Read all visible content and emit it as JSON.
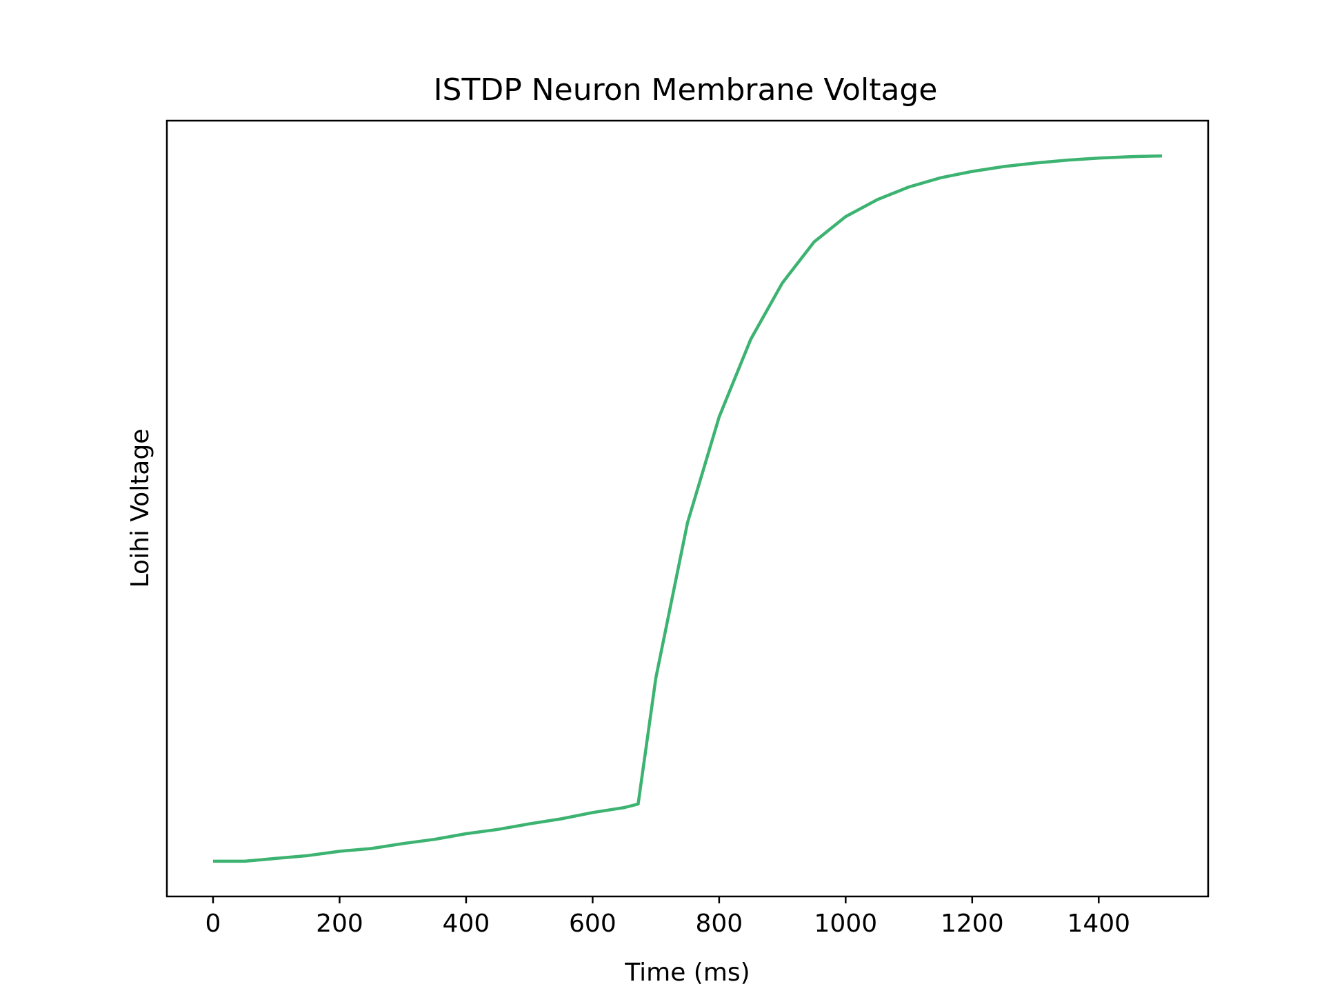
{
  "chart_data": {
    "type": "line",
    "title": "ISTDP Neuron Membrane Voltage",
    "xlabel": "Time (ms)",
    "ylabel": "Loihi Voltage",
    "xlim": [
      -73,
      1573
    ],
    "ylim": [
      -0.05,
      1.05
    ],
    "x_ticks": [
      0,
      200,
      400,
      600,
      800,
      1000,
      1200,
      1400
    ],
    "x_tick_labels": [
      "0",
      "200",
      "400",
      "600",
      "800",
      "1000",
      "1200",
      "1400"
    ],
    "y_ticks_shown": false,
    "grid": false,
    "line_color": "#3cb371",
    "series": [
      {
        "x": [
          0,
          50,
          100,
          150,
          200,
          250,
          300,
          350,
          400,
          450,
          500,
          550,
          600,
          650,
          672,
          700,
          750,
          800,
          850,
          900,
          950,
          1000,
          1050,
          1100,
          1150,
          1200,
          1250,
          1300,
          1350,
          1400,
          1450,
          1500
        ],
        "values": [
          0.0,
          0.0,
          0.004,
          0.008,
          0.014,
          0.018,
          0.025,
          0.031,
          0.039,
          0.045,
          0.053,
          0.06,
          0.069,
          0.076,
          0.081,
          0.26,
          0.48,
          0.63,
          0.74,
          0.82,
          0.878,
          0.914,
          0.938,
          0.956,
          0.969,
          0.978,
          0.985,
          0.99,
          0.994,
          0.997,
          0.999,
          1.0
        ]
      }
    ]
  }
}
